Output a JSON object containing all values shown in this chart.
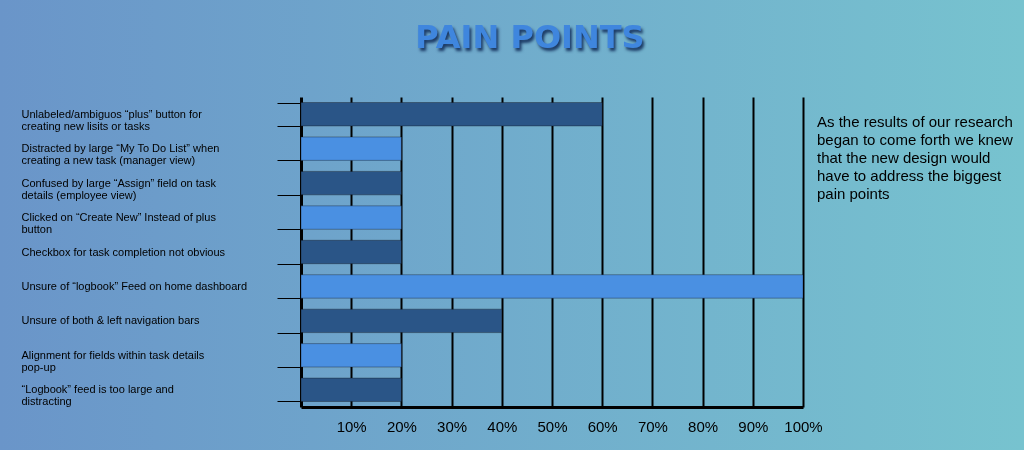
{
  "chart_data": {
    "type": "bar",
    "orientation": "horizontal",
    "title": "PAIN POINTS",
    "categories": [
      "Unlabeled/ambiguos “plus” button for creating new lisits or tasks",
      "Distracted by large “My To Do List” when creating a new task (manager view)",
      "Confused by large “Assign” field on task details (employee view)",
      "Clicked on “Create New” Instead of plus button",
      "Checkbox for task completion not obvious",
      "Unsure of “logbook” Feed on home dashboard",
      "Unsure of both & left navigation bars",
      "Alignment for fields within task details pop-up",
      "“Logbook” feed is too large and distracting"
    ],
    "values": [
      60,
      20,
      20,
      20,
      20,
      100,
      40,
      20,
      20
    ],
    "colors": [
      "#2a5587",
      "#4a90e2",
      "#2a5587",
      "#4a90e2",
      "#2a5587",
      "#4a90e2",
      "#2a5587",
      "#4a90e2",
      "#2a5587"
    ],
    "xlim": [
      0,
      100
    ],
    "xticks": [
      {
        "value": 10,
        "label": "10%"
      },
      {
        "value": 20,
        "label": "20%"
      },
      {
        "value": 30,
        "label": "30%"
      },
      {
        "value": 40,
        "label": "40%"
      },
      {
        "value": 50,
        "label": "50%"
      },
      {
        "value": 60,
        "label": "60%"
      },
      {
        "value": 70,
        "label": "70%"
      },
      {
        "value": 80,
        "label": "80%"
      },
      {
        "value": 90,
        "label": "90%"
      },
      {
        "value": 100,
        "label": "100%"
      }
    ],
    "grid": "x",
    "annotations": [
      "As the results of our research began to come forth we knew that the new design would have to address the biggest pain points"
    ]
  }
}
